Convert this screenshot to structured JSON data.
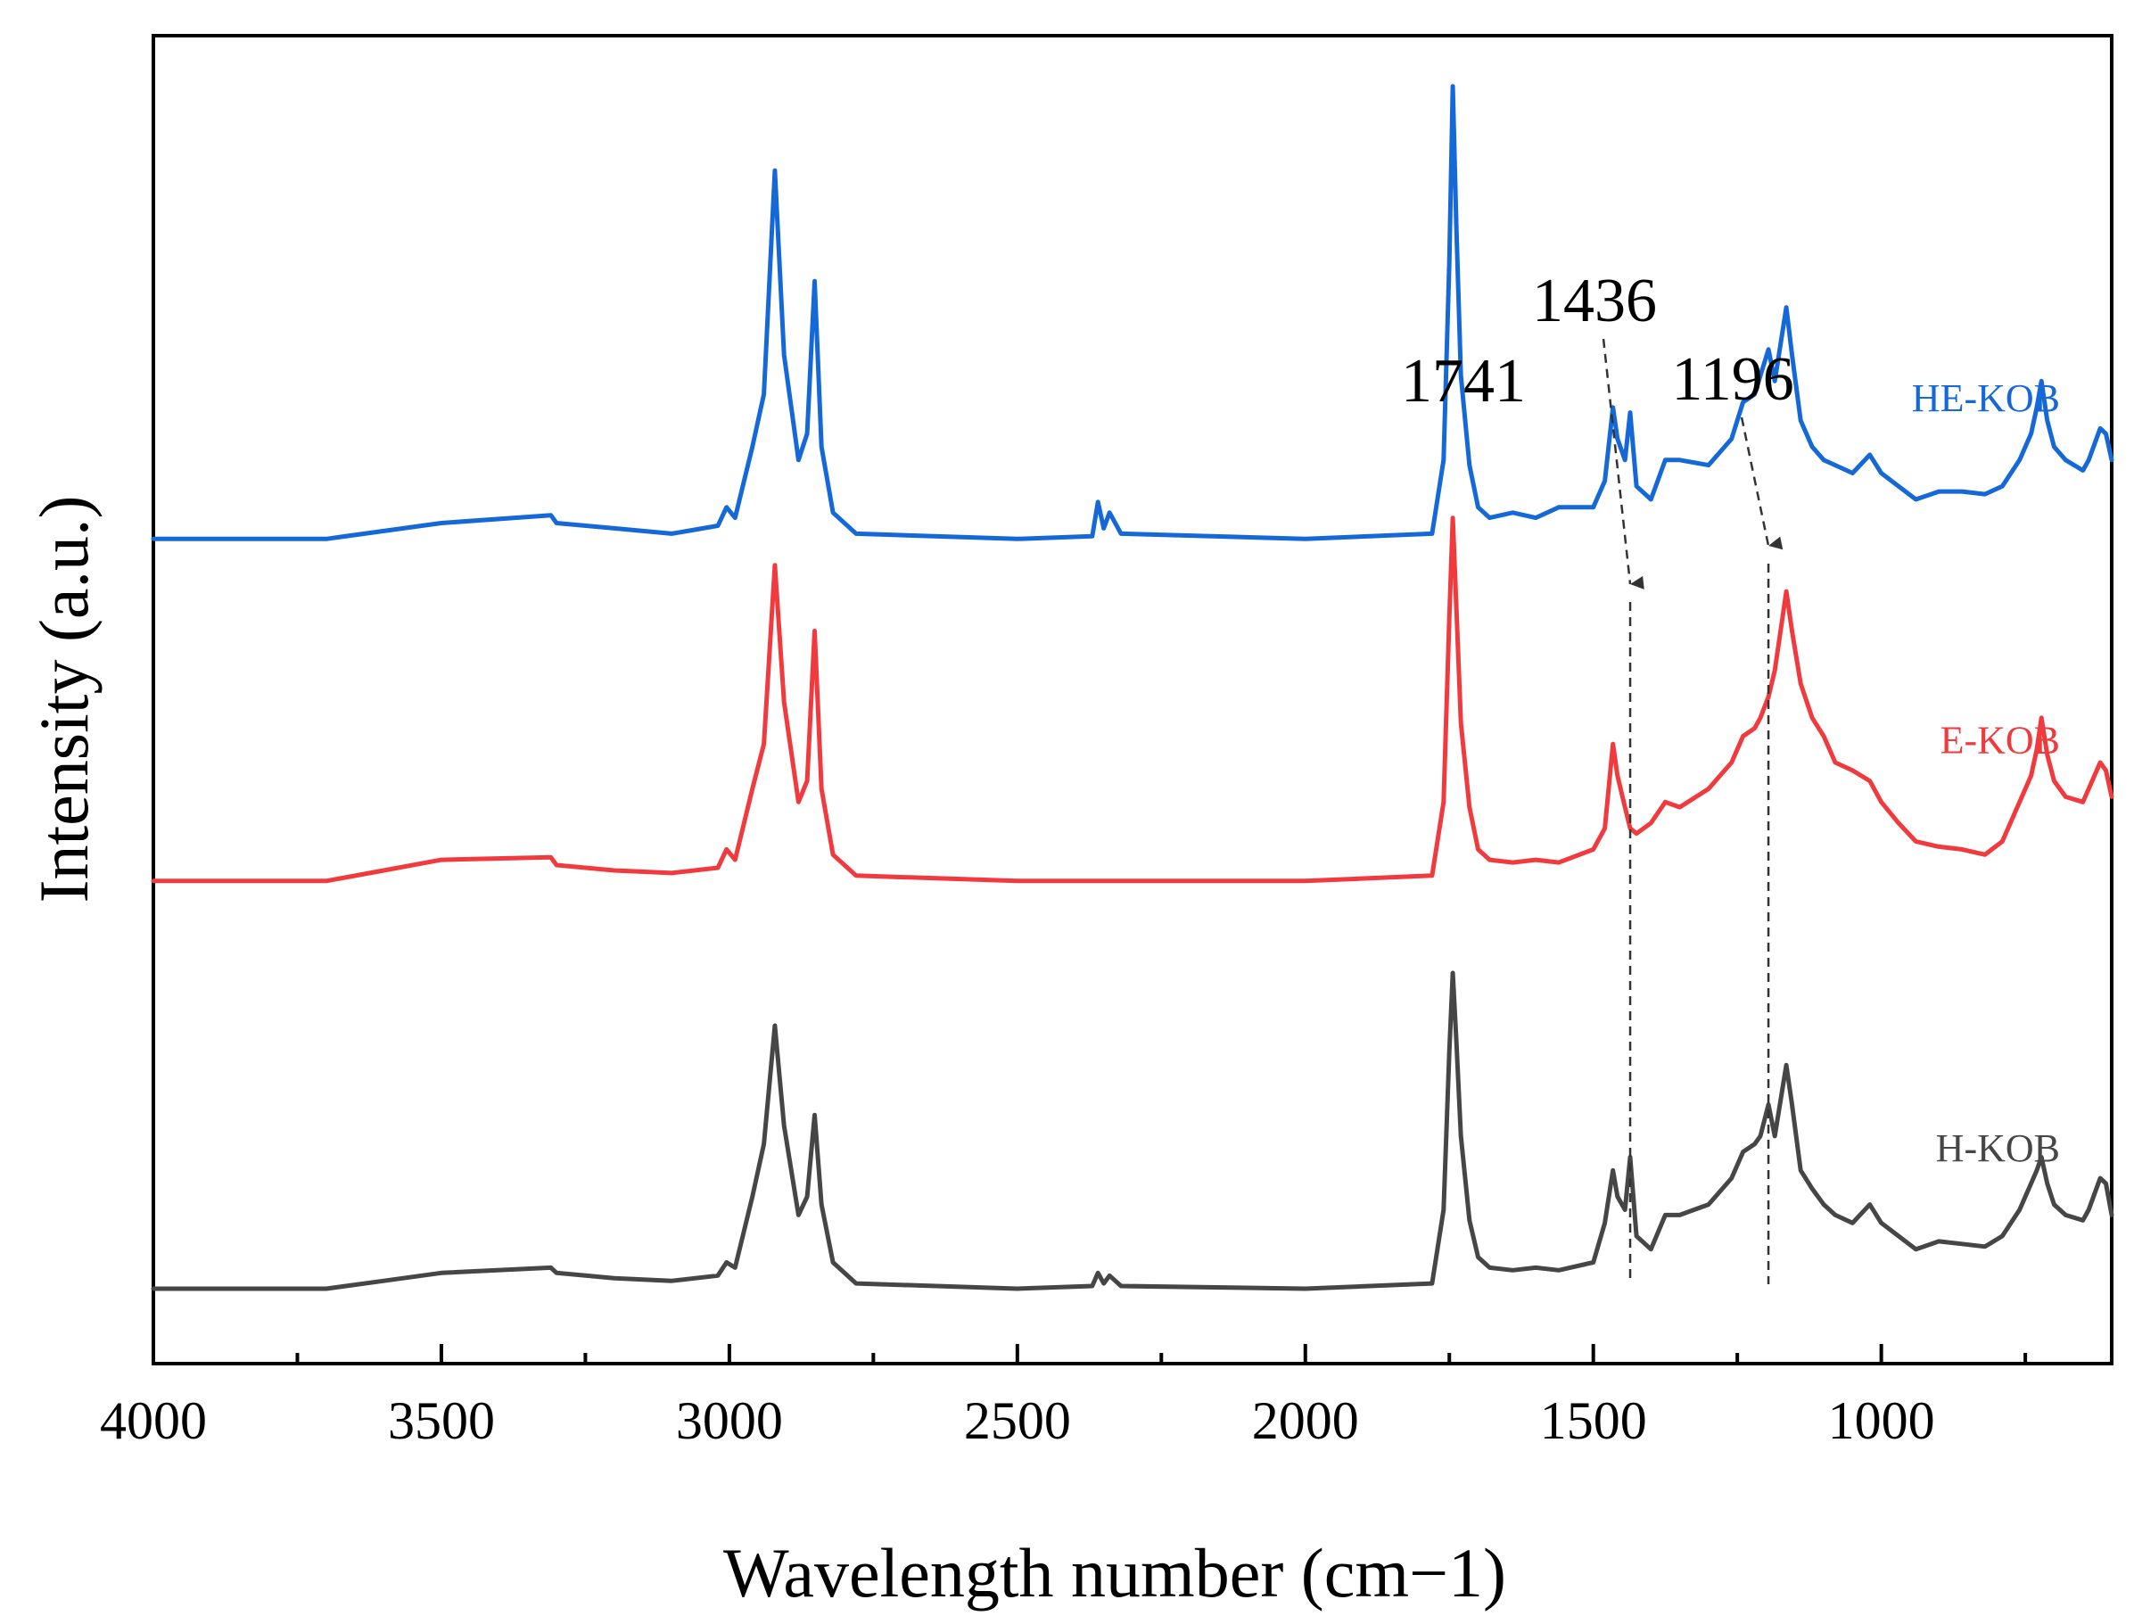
{
  "chart_data": {
    "type": "line",
    "title": "",
    "xlabel": "Wavelength number (cm−1)",
    "ylabel": "Intensity (a.u.)",
    "xlim": [
      4000,
      600
    ],
    "x_reversed": true,
    "y_ticks_shown": false,
    "xticks": [
      "4000",
      "3500",
      "3000",
      "2500",
      "2000",
      "1500",
      "1000"
    ],
    "xtick_values": [
      4000,
      3500,
      3000,
      2500,
      2000,
      1500,
      1000
    ],
    "minor_tick_step": 250,
    "annotations": [
      {
        "label": "1741",
        "x": 1741,
        "style": "text"
      },
      {
        "label": "1436",
        "x": 1436,
        "style": "dashed-arrow"
      },
      {
        "label": "1196",
        "x": 1196,
        "style": "dashed-arrow"
      }
    ],
    "series": [
      {
        "name": "HE-KOB",
        "color": "#1568d8",
        "baseline": 0,
        "offset": 2.85,
        "points": [
          [
            4000,
            0
          ],
          [
            3700,
            0
          ],
          [
            3500,
            0.06
          ],
          [
            3310,
            0.09
          ],
          [
            3300,
            0.06
          ],
          [
            3200,
            0.04
          ],
          [
            3100,
            0.02
          ],
          [
            3020,
            0.05
          ],
          [
            3005,
            0.12
          ],
          [
            2990,
            0.08
          ],
          [
            2960,
            0.35
          ],
          [
            2940,
            0.55
          ],
          [
            2921,
            1.4
          ],
          [
            2905,
            0.7
          ],
          [
            2880,
            0.3
          ],
          [
            2865,
            0.4
          ],
          [
            2852,
            0.98
          ],
          [
            2840,
            0.35
          ],
          [
            2820,
            0.1
          ],
          [
            2780,
            0.02
          ],
          [
            2500,
            0
          ],
          [
            2370,
            0.01
          ],
          [
            2360,
            0.14
          ],
          [
            2350,
            0.04
          ],
          [
            2340,
            0.1
          ],
          [
            2320,
            0.02
          ],
          [
            2000,
            0
          ],
          [
            1780,
            0.02
          ],
          [
            1760,
            0.3
          ],
          [
            1750,
            1.05
          ],
          [
            1744,
            1.72
          ],
          [
            1738,
            1.2
          ],
          [
            1730,
            0.62
          ],
          [
            1715,
            0.28
          ],
          [
            1700,
            0.12
          ],
          [
            1680,
            0.08
          ],
          [
            1640,
            0.1
          ],
          [
            1600,
            0.08
          ],
          [
            1560,
            0.12
          ],
          [
            1500,
            0.12
          ],
          [
            1480,
            0.22
          ],
          [
            1466,
            0.5
          ],
          [
            1458,
            0.38
          ],
          [
            1445,
            0.3
          ],
          [
            1436,
            0.48
          ],
          [
            1425,
            0.2
          ],
          [
            1400,
            0.15
          ],
          [
            1375,
            0.3
          ],
          [
            1350,
            0.3
          ],
          [
            1300,
            0.28
          ],
          [
            1260,
            0.38
          ],
          [
            1240,
            0.52
          ],
          [
            1220,
            0.55
          ],
          [
            1210,
            0.62
          ],
          [
            1196,
            0.72
          ],
          [
            1185,
            0.6
          ],
          [
            1165,
            0.88
          ],
          [
            1155,
            0.7
          ],
          [
            1140,
            0.45
          ],
          [
            1120,
            0.35
          ],
          [
            1100,
            0.3
          ],
          [
            1080,
            0.28
          ],
          [
            1050,
            0.25
          ],
          [
            1020,
            0.32
          ],
          [
            1000,
            0.25
          ],
          [
            970,
            0.2
          ],
          [
            940,
            0.15
          ],
          [
            900,
            0.18
          ],
          [
            860,
            0.18
          ],
          [
            820,
            0.17
          ],
          [
            790,
            0.2
          ],
          [
            760,
            0.3
          ],
          [
            740,
            0.4
          ],
          [
            730,
            0.5
          ],
          [
            722,
            0.6
          ],
          [
            712,
            0.45
          ],
          [
            700,
            0.35
          ],
          [
            680,
            0.3
          ],
          [
            650,
            0.26
          ],
          [
            640,
            0.3
          ],
          [
            620,
            0.42
          ],
          [
            610,
            0.4
          ],
          [
            600,
            0.3
          ]
        ]
      },
      {
        "name": "E-KOB",
        "color": "#f03a3d",
        "baseline": 0,
        "offset": 1.55,
        "points": [
          [
            4000,
            0
          ],
          [
            3700,
            0
          ],
          [
            3600,
            0.04
          ],
          [
            3500,
            0.08
          ],
          [
            3310,
            0.09
          ],
          [
            3300,
            0.06
          ],
          [
            3200,
            0.04
          ],
          [
            3100,
            0.03
          ],
          [
            3020,
            0.05
          ],
          [
            3005,
            0.12
          ],
          [
            2990,
            0.08
          ],
          [
            2960,
            0.35
          ],
          [
            2940,
            0.52
          ],
          [
            2921,
            1.2
          ],
          [
            2905,
            0.68
          ],
          [
            2880,
            0.3
          ],
          [
            2865,
            0.38
          ],
          [
            2852,
            0.95
          ],
          [
            2840,
            0.35
          ],
          [
            2820,
            0.1
          ],
          [
            2780,
            0.02
          ],
          [
            2500,
            0
          ],
          [
            2000,
            0
          ],
          [
            1780,
            0.02
          ],
          [
            1760,
            0.3
          ],
          [
            1750,
            1.0
          ],
          [
            1744,
            1.38
          ],
          [
            1738,
            1.05
          ],
          [
            1730,
            0.6
          ],
          [
            1715,
            0.28
          ],
          [
            1700,
            0.12
          ],
          [
            1680,
            0.08
          ],
          [
            1640,
            0.07
          ],
          [
            1600,
            0.08
          ],
          [
            1560,
            0.07
          ],
          [
            1500,
            0.12
          ],
          [
            1480,
            0.2
          ],
          [
            1466,
            0.52
          ],
          [
            1458,
            0.4
          ],
          [
            1445,
            0.28
          ],
          [
            1436,
            0.2
          ],
          [
            1425,
            0.18
          ],
          [
            1400,
            0.22
          ],
          [
            1375,
            0.3
          ],
          [
            1350,
            0.28
          ],
          [
            1300,
            0.35
          ],
          [
            1260,
            0.45
          ],
          [
            1240,
            0.55
          ],
          [
            1220,
            0.58
          ],
          [
            1210,
            0.62
          ],
          [
            1196,
            0.7
          ],
          [
            1185,
            0.8
          ],
          [
            1165,
            1.1
          ],
          [
            1155,
            0.95
          ],
          [
            1140,
            0.75
          ],
          [
            1120,
            0.62
          ],
          [
            1100,
            0.55
          ],
          [
            1080,
            0.45
          ],
          [
            1050,
            0.42
          ],
          [
            1020,
            0.38
          ],
          [
            1000,
            0.3
          ],
          [
            970,
            0.22
          ],
          [
            940,
            0.15
          ],
          [
            900,
            0.13
          ],
          [
            860,
            0.12
          ],
          [
            820,
            0.1
          ],
          [
            790,
            0.15
          ],
          [
            760,
            0.3
          ],
          [
            740,
            0.4
          ],
          [
            730,
            0.5
          ],
          [
            722,
            0.62
          ],
          [
            712,
            0.48
          ],
          [
            700,
            0.38
          ],
          [
            680,
            0.32
          ],
          [
            650,
            0.3
          ],
          [
            640,
            0.35
          ],
          [
            620,
            0.45
          ],
          [
            610,
            0.42
          ],
          [
            600,
            0.32
          ]
        ]
      },
      {
        "name": "H-KOB",
        "color": "#464646",
        "baseline": 0,
        "offset": 0.0,
        "points": [
          [
            4000,
            0
          ],
          [
            3700,
            0
          ],
          [
            3600,
            0.03
          ],
          [
            3500,
            0.06
          ],
          [
            3310,
            0.08
          ],
          [
            3300,
            0.06
          ],
          [
            3200,
            0.04
          ],
          [
            3100,
            0.03
          ],
          [
            3020,
            0.05
          ],
          [
            3005,
            0.1
          ],
          [
            2990,
            0.08
          ],
          [
            2960,
            0.35
          ],
          [
            2940,
            0.55
          ],
          [
            2921,
            1.0
          ],
          [
            2905,
            0.62
          ],
          [
            2880,
            0.28
          ],
          [
            2865,
            0.35
          ],
          [
            2852,
            0.66
          ],
          [
            2840,
            0.32
          ],
          [
            2820,
            0.1
          ],
          [
            2780,
            0.02
          ],
          [
            2500,
            0
          ],
          [
            2370,
            0.01
          ],
          [
            2360,
            0.06
          ],
          [
            2350,
            0.02
          ],
          [
            2340,
            0.05
          ],
          [
            2320,
            0.01
          ],
          [
            2000,
            0
          ],
          [
            1780,
            0.02
          ],
          [
            1760,
            0.3
          ],
          [
            1750,
            0.9
          ],
          [
            1744,
            1.2
          ],
          [
            1738,
            0.95
          ],
          [
            1730,
            0.58
          ],
          [
            1715,
            0.26
          ],
          [
            1700,
            0.12
          ],
          [
            1680,
            0.08
          ],
          [
            1640,
            0.07
          ],
          [
            1600,
            0.08
          ],
          [
            1560,
            0.07
          ],
          [
            1500,
            0.1
          ],
          [
            1480,
            0.25
          ],
          [
            1466,
            0.45
          ],
          [
            1458,
            0.35
          ],
          [
            1445,
            0.3
          ],
          [
            1436,
            0.5
          ],
          [
            1425,
            0.2
          ],
          [
            1400,
            0.15
          ],
          [
            1375,
            0.28
          ],
          [
            1350,
            0.28
          ],
          [
            1300,
            0.32
          ],
          [
            1260,
            0.42
          ],
          [
            1240,
            0.52
          ],
          [
            1220,
            0.55
          ],
          [
            1210,
            0.58
          ],
          [
            1196,
            0.7
          ],
          [
            1185,
            0.58
          ],
          [
            1165,
            0.85
          ],
          [
            1155,
            0.7
          ],
          [
            1140,
            0.45
          ],
          [
            1120,
            0.38
          ],
          [
            1100,
            0.32
          ],
          [
            1080,
            0.28
          ],
          [
            1050,
            0.25
          ],
          [
            1020,
            0.32
          ],
          [
            1000,
            0.25
          ],
          [
            970,
            0.2
          ],
          [
            940,
            0.15
          ],
          [
            900,
            0.18
          ],
          [
            860,
            0.17
          ],
          [
            820,
            0.16
          ],
          [
            790,
            0.2
          ],
          [
            760,
            0.3
          ],
          [
            740,
            0.4
          ],
          [
            730,
            0.45
          ],
          [
            722,
            0.5
          ],
          [
            712,
            0.4
          ],
          [
            700,
            0.32
          ],
          [
            680,
            0.28
          ],
          [
            650,
            0.26
          ],
          [
            640,
            0.3
          ],
          [
            620,
            0.42
          ],
          [
            610,
            0.4
          ],
          [
            600,
            0.28
          ]
        ]
      }
    ]
  }
}
